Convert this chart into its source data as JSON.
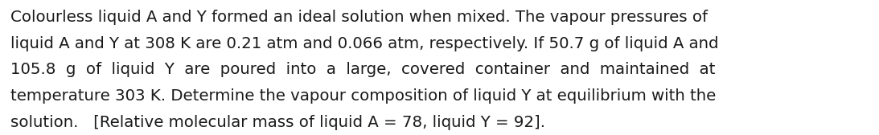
{
  "lines": [
    "Colourless liquid A and Y formed an ideal solution when mixed. The vapour pressures of",
    "liquid A and Y at 308 K are 0.21 atm and 0.066 atm, respectively. If 50.7 g of liquid A and",
    "105.8  g  of  liquid  Y  are  poured  into  a  large,  covered  container  and  maintained  at",
    "temperature 303 K. Determine the vapour composition of liquid Y at equilibrium with the",
    "solution.   [Relative molecular mass of liquid A = 78, liquid Y = 92]."
  ],
  "background_color": "#ffffff",
  "text_color": "#1a1a1a",
  "font_size": 14.2,
  "font_family": "DejaVu Sans",
  "font_weight": "normal",
  "fig_width": 10.93,
  "fig_height": 1.68,
  "dpi": 100
}
